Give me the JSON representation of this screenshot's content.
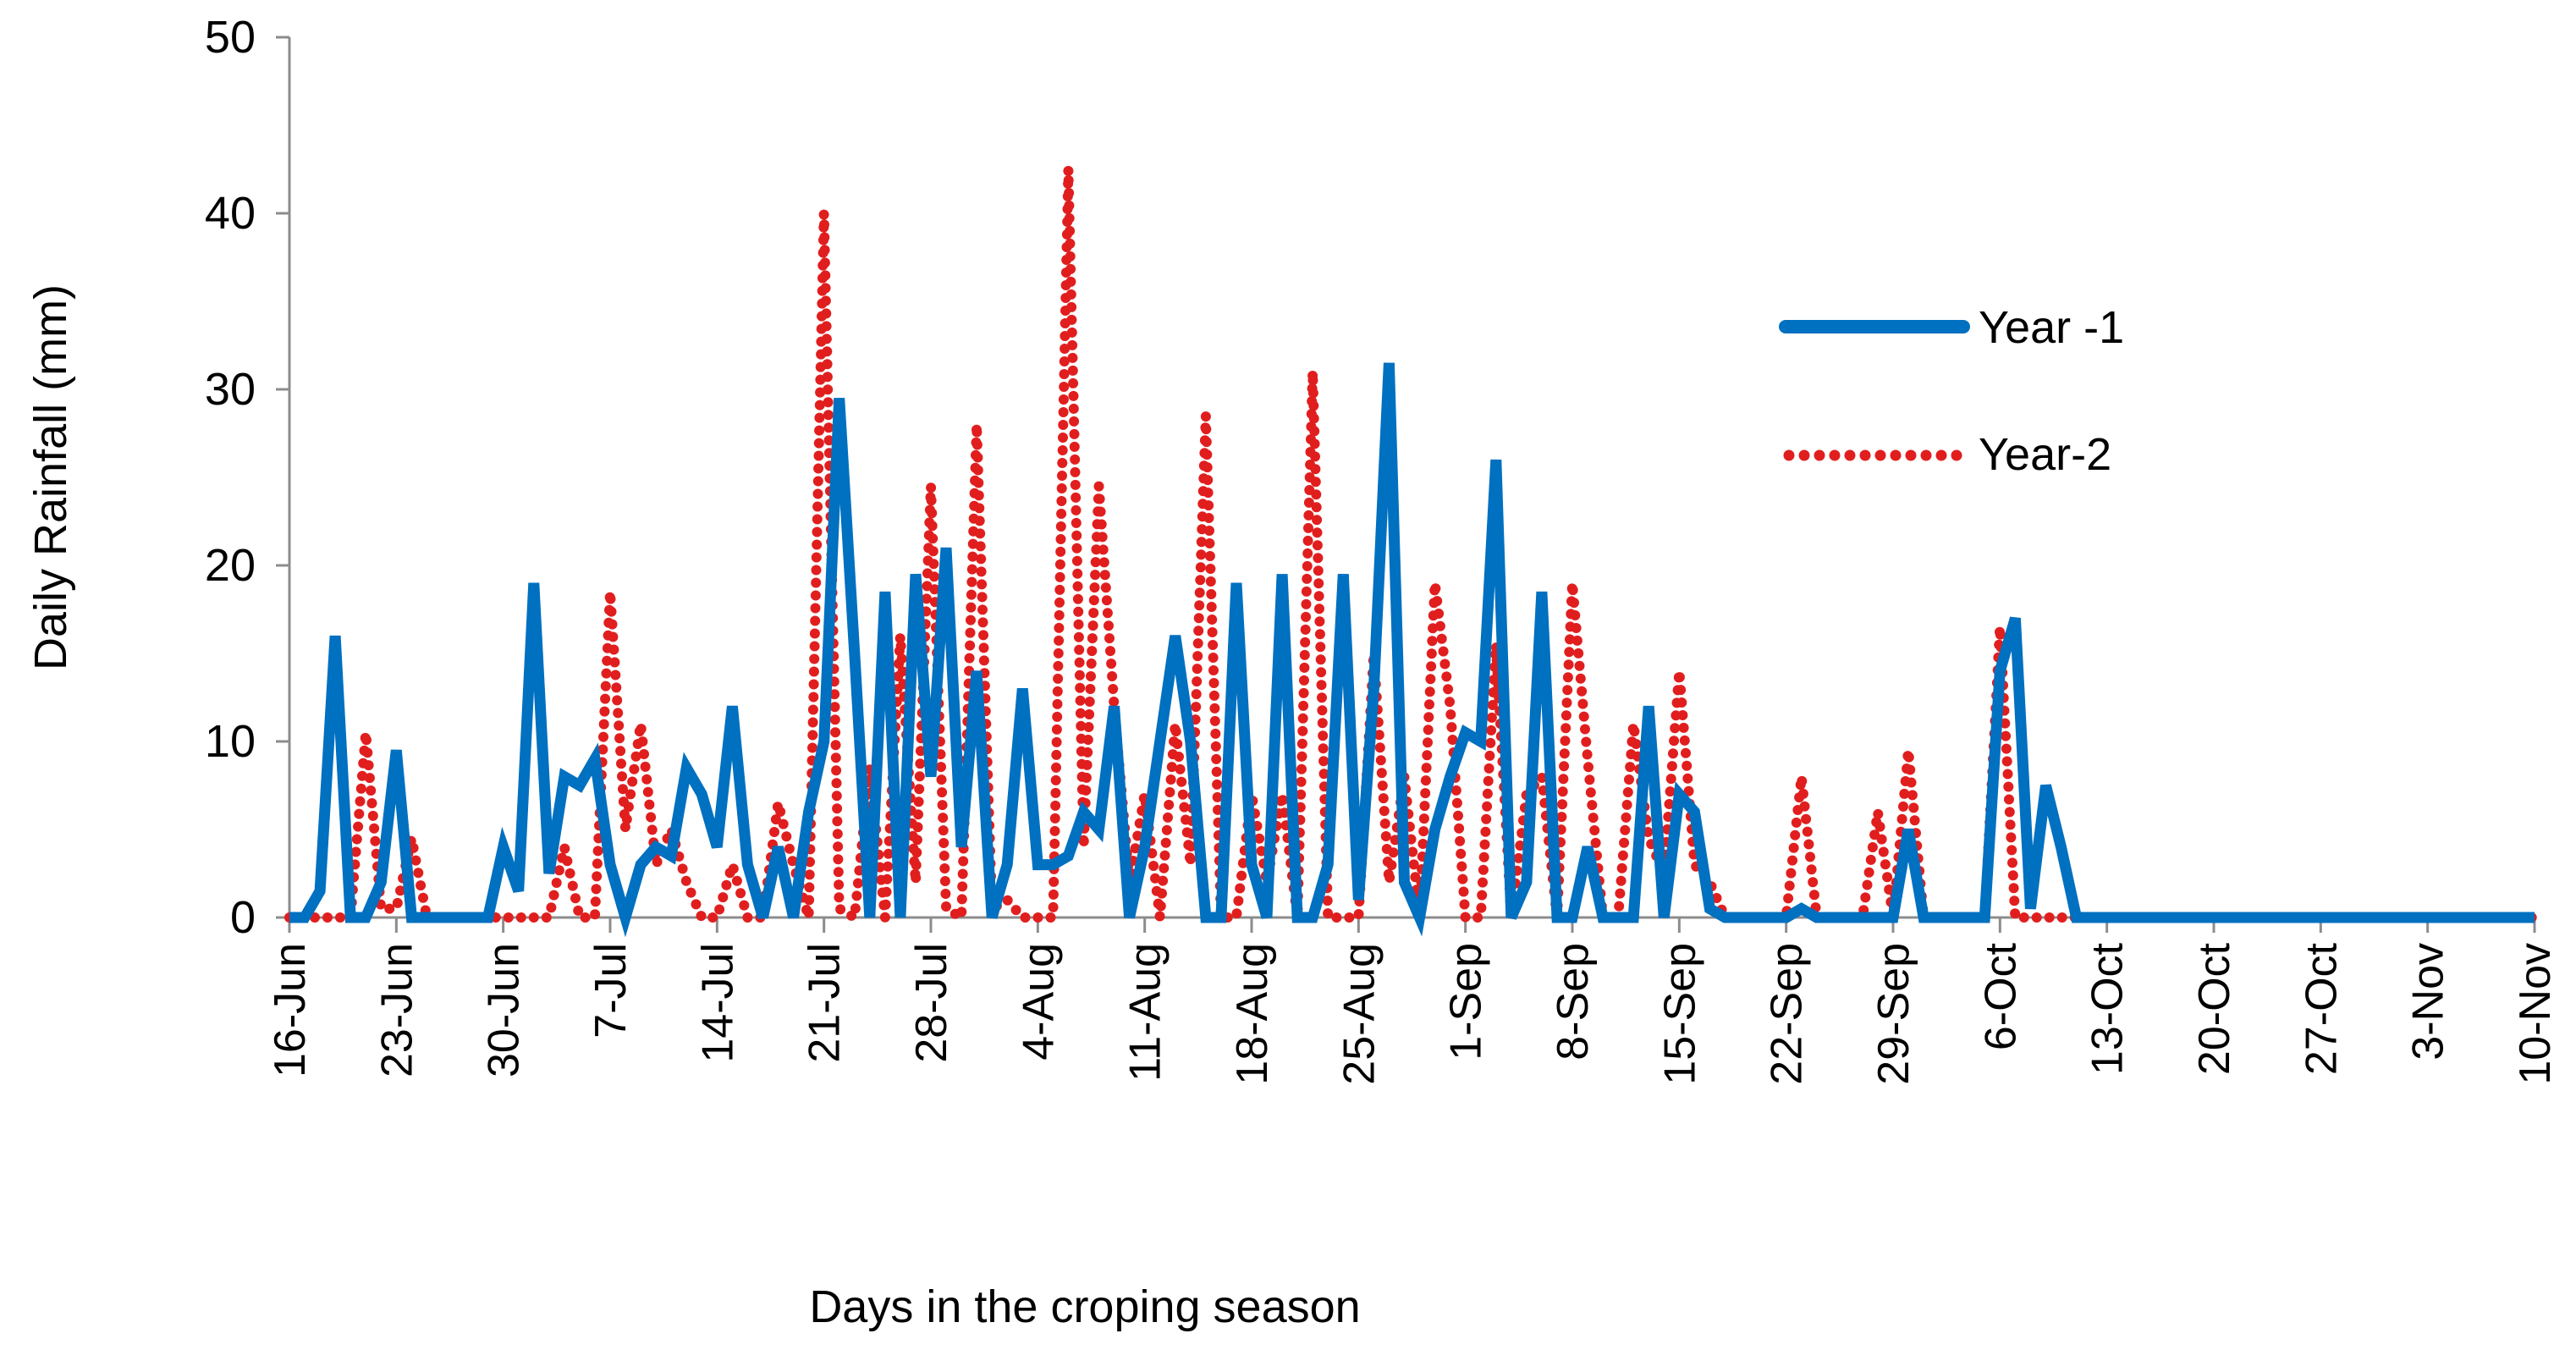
{
  "chart_data": {
    "type": "line",
    "title": "",
    "xlabel": "Days in the croping season",
    "ylabel": "Daily Rainfall (mm)",
    "ylim": [
      0,
      50
    ],
    "yticks": [
      0,
      10,
      20,
      30,
      40,
      50
    ],
    "x_start_label": "16-Jun",
    "x_day_range": [
      0,
      147
    ],
    "xticks": [
      {
        "day": 0,
        "label": "16-Jun"
      },
      {
        "day": 7,
        "label": "23-Jun"
      },
      {
        "day": 14,
        "label": "30-Jun"
      },
      {
        "day": 21,
        "label": "7-Jul"
      },
      {
        "day": 28,
        "label": "14-Jul"
      },
      {
        "day": 35,
        "label": "21-Jul"
      },
      {
        "day": 42,
        "label": "28-Jul"
      },
      {
        "day": 49,
        "label": "4-Aug"
      },
      {
        "day": 56,
        "label": "11-Aug"
      },
      {
        "day": 63,
        "label": "18-Aug"
      },
      {
        "day": 70,
        "label": "25-Aug"
      },
      {
        "day": 77,
        "label": "1-Sep"
      },
      {
        "day": 84,
        "label": "8-Sep"
      },
      {
        "day": 91,
        "label": "15-Sep"
      },
      {
        "day": 98,
        "label": "22-Sep"
      },
      {
        "day": 105,
        "label": "29-Sep"
      },
      {
        "day": 112,
        "label": "6-Oct"
      },
      {
        "day": 119,
        "label": "13-Oct"
      },
      {
        "day": 126,
        "label": "20-Oct"
      },
      {
        "day": 133,
        "label": "27-Oct"
      },
      {
        "day": 140,
        "label": "3-Nov"
      },
      {
        "day": 147,
        "label": "10-Nov"
      }
    ],
    "legend": {
      "position": "right",
      "entries": [
        "Year -1",
        "Year-2"
      ]
    },
    "series": [
      {
        "name": "Year -1",
        "color": "#0070C0",
        "style": "solid",
        "points": [
          [
            0,
            0
          ],
          [
            1,
            0
          ],
          [
            2,
            1.5
          ],
          [
            3,
            16
          ],
          [
            4,
            0
          ],
          [
            5,
            0
          ],
          [
            6,
            2
          ],
          [
            7,
            9.5
          ],
          [
            8,
            0
          ],
          [
            9,
            0
          ],
          [
            10,
            0
          ],
          [
            11,
            0
          ],
          [
            12,
            0
          ],
          [
            13,
            0
          ],
          [
            14,
            4
          ],
          [
            15,
            1.5
          ],
          [
            16,
            19
          ],
          [
            17,
            2.5
          ],
          [
            18,
            8
          ],
          [
            19,
            7.5
          ],
          [
            20,
            9
          ],
          [
            21,
            3
          ],
          [
            22,
            0
          ],
          [
            23,
            3
          ],
          [
            24,
            4
          ],
          [
            25,
            3.5
          ],
          [
            26,
            8.5
          ],
          [
            27,
            7
          ],
          [
            28,
            4
          ],
          [
            29,
            12
          ],
          [
            30,
            3
          ],
          [
            31,
            0
          ],
          [
            32,
            4
          ],
          [
            33,
            0
          ],
          [
            34,
            6
          ],
          [
            35,
            10
          ],
          [
            36,
            29.5
          ],
          [
            37,
            15
          ],
          [
            38,
            0
          ],
          [
            39,
            18.5
          ],
          [
            40,
            0
          ],
          [
            41,
            19.5
          ],
          [
            42,
            8
          ],
          [
            43,
            21
          ],
          [
            44,
            4
          ],
          [
            45,
            14
          ],
          [
            46,
            0
          ],
          [
            47,
            3
          ],
          [
            48,
            13
          ],
          [
            49,
            3
          ],
          [
            50,
            3
          ],
          [
            51,
            3.5
          ],
          [
            52,
            6
          ],
          [
            53,
            5
          ],
          [
            54,
            12
          ],
          [
            55,
            0
          ],
          [
            56,
            4
          ],
          [
            57,
            10
          ],
          [
            58,
            16
          ],
          [
            59,
            10
          ],
          [
            60,
            0
          ],
          [
            61,
            0
          ],
          [
            62,
            19
          ],
          [
            63,
            3
          ],
          [
            64,
            0
          ],
          [
            65,
            19.5
          ],
          [
            66,
            0
          ],
          [
            67,
            0
          ],
          [
            68,
            3
          ],
          [
            69,
            19.5
          ],
          [
            70,
            1
          ],
          [
            71,
            13
          ],
          [
            72,
            31.5
          ],
          [
            73,
            2
          ],
          [
            74,
            0
          ],
          [
            75,
            5
          ],
          [
            76,
            8
          ],
          [
            77,
            10.5
          ],
          [
            78,
            10
          ],
          [
            79,
            26
          ],
          [
            80,
            0
          ],
          [
            81,
            2
          ],
          [
            82,
            18.5
          ],
          [
            83,
            0
          ],
          [
            84,
            0
          ],
          [
            85,
            4
          ],
          [
            86,
            0
          ],
          [
            87,
            0
          ],
          [
            88,
            0
          ],
          [
            89,
            12
          ],
          [
            90,
            0
          ],
          [
            91,
            7
          ],
          [
            92,
            6
          ],
          [
            93,
            0.5
          ],
          [
            94,
            0
          ],
          [
            95,
            0
          ],
          [
            96,
            0
          ],
          [
            97,
            0
          ],
          [
            98,
            0
          ],
          [
            99,
            0.5
          ],
          [
            100,
            0
          ],
          [
            101,
            0
          ],
          [
            102,
            0
          ],
          [
            103,
            0
          ],
          [
            104,
            0
          ],
          [
            105,
            0
          ],
          [
            106,
            5
          ],
          [
            107,
            0
          ],
          [
            108,
            0
          ],
          [
            109,
            0
          ],
          [
            110,
            0
          ],
          [
            111,
            0
          ],
          [
            112,
            14
          ],
          [
            113,
            17
          ],
          [
            114,
            0.5
          ],
          [
            115,
            7.5
          ],
          [
            116,
            4
          ],
          [
            117,
            0
          ],
          [
            118,
            0
          ],
          [
            119,
            0
          ],
          [
            120,
            0
          ],
          [
            121,
            0
          ],
          [
            122,
            0
          ],
          [
            123,
            0
          ],
          [
            124,
            0
          ],
          [
            125,
            0
          ],
          [
            126,
            0
          ],
          [
            127,
            0
          ],
          [
            128,
            0
          ],
          [
            129,
            0
          ],
          [
            130,
            0
          ],
          [
            131,
            0
          ],
          [
            132,
            0
          ],
          [
            133,
            0
          ],
          [
            134,
            0
          ],
          [
            135,
            0
          ],
          [
            136,
            0
          ],
          [
            137,
            0
          ],
          [
            138,
            0
          ],
          [
            139,
            0
          ],
          [
            140,
            0
          ],
          [
            141,
            0
          ],
          [
            142,
            0
          ],
          [
            143,
            0
          ],
          [
            144,
            0
          ],
          [
            145,
            0
          ],
          [
            146,
            0
          ],
          [
            147,
            0
          ]
        ]
      },
      {
        "name": "Year-2",
        "color": "#E11E1E",
        "style": "dotted",
        "points": [
          [
            0,
            0
          ],
          [
            1,
            0
          ],
          [
            2,
            0
          ],
          [
            3,
            0
          ],
          [
            4,
            0
          ],
          [
            5,
            10.5
          ],
          [
            6,
            0.5
          ],
          [
            7,
            0.5
          ],
          [
            8,
            4.5
          ],
          [
            9,
            0
          ],
          [
            10,
            0
          ],
          [
            11,
            0
          ],
          [
            12,
            0
          ],
          [
            13,
            0
          ],
          [
            14,
            0
          ],
          [
            15,
            0
          ],
          [
            16,
            0
          ],
          [
            17,
            0
          ],
          [
            18,
            4
          ],
          [
            19,
            0
          ],
          [
            20,
            0
          ],
          [
            21,
            18.5
          ],
          [
            22,
            5
          ],
          [
            23,
            11
          ],
          [
            24,
            3
          ],
          [
            25,
            5
          ],
          [
            26,
            2
          ],
          [
            27,
            0
          ],
          [
            28,
            0
          ],
          [
            29,
            3
          ],
          [
            30,
            0
          ],
          [
            31,
            0
          ],
          [
            32,
            6.5
          ],
          [
            33,
            3
          ],
          [
            34,
            0
          ],
          [
            35,
            40
          ],
          [
            36,
            0.5
          ],
          [
            37,
            0
          ],
          [
            38,
            8.5
          ],
          [
            39,
            0
          ],
          [
            40,
            16
          ],
          [
            41,
            2
          ],
          [
            42,
            24.5
          ],
          [
            43,
            0.5
          ],
          [
            44,
            0
          ],
          [
            45,
            28
          ],
          [
            46,
            0.5
          ],
          [
            47,
            1
          ],
          [
            48,
            0
          ],
          [
            49,
            0
          ],
          [
            50,
            0
          ],
          [
            51,
            42.5
          ],
          [
            52,
            4
          ],
          [
            53,
            24.5
          ],
          [
            54,
            12
          ],
          [
            55,
            2
          ],
          [
            56,
            7
          ],
          [
            57,
            0
          ],
          [
            58,
            11
          ],
          [
            59,
            3
          ],
          [
            60,
            28.5
          ],
          [
            61,
            0
          ],
          [
            62,
            0
          ],
          [
            63,
            7
          ],
          [
            64,
            2
          ],
          [
            65,
            7
          ],
          [
            66,
            0
          ],
          [
            67,
            31
          ],
          [
            68,
            0
          ],
          [
            69,
            0
          ],
          [
            70,
            0
          ],
          [
            71,
            15
          ],
          [
            72,
            2
          ],
          [
            73,
            8
          ],
          [
            74,
            0
          ],
          [
            75,
            19
          ],
          [
            76,
            12
          ],
          [
            77,
            0
          ],
          [
            78,
            0
          ],
          [
            79,
            15.5
          ],
          [
            80,
            0
          ],
          [
            81,
            7
          ],
          [
            82,
            8
          ],
          [
            83,
            0
          ],
          [
            84,
            19
          ],
          [
            85,
            9
          ],
          [
            86,
            0
          ],
          [
            87,
            0
          ],
          [
            88,
            11
          ],
          [
            89,
            4.5
          ],
          [
            90,
            2.5
          ],
          [
            91,
            14
          ],
          [
            92,
            3
          ],
          [
            93,
            2
          ],
          [
            94,
            0
          ],
          [
            95,
            0
          ],
          [
            96,
            0
          ],
          [
            97,
            0
          ],
          [
            98,
            0
          ],
          [
            99,
            8
          ],
          [
            100,
            0
          ],
          [
            101,
            0
          ],
          [
            102,
            0
          ],
          [
            103,
            0
          ],
          [
            104,
            6
          ],
          [
            105,
            0
          ],
          [
            106,
            9.5
          ],
          [
            107,
            0
          ],
          [
            108,
            0
          ],
          [
            109,
            0
          ],
          [
            110,
            0
          ],
          [
            111,
            0
          ],
          [
            112,
            16.5
          ],
          [
            113,
            0
          ],
          [
            114,
            0
          ],
          [
            115,
            0
          ],
          [
            116,
            0
          ],
          [
            117,
            0
          ],
          [
            118,
            0
          ],
          [
            119,
            0
          ],
          [
            120,
            0
          ],
          [
            121,
            0
          ],
          [
            122,
            0
          ],
          [
            123,
            0
          ],
          [
            124,
            0
          ],
          [
            125,
            0
          ],
          [
            126,
            0
          ],
          [
            127,
            0
          ],
          [
            128,
            0
          ],
          [
            129,
            0
          ],
          [
            130,
            0
          ],
          [
            131,
            0
          ],
          [
            132,
            0
          ],
          [
            133,
            0
          ],
          [
            134,
            0
          ],
          [
            135,
            0
          ],
          [
            136,
            0
          ],
          [
            137,
            0
          ],
          [
            138,
            0
          ],
          [
            139,
            0
          ],
          [
            140,
            0
          ],
          [
            141,
            0
          ],
          [
            142,
            0
          ],
          [
            143,
            0
          ],
          [
            144,
            0
          ],
          [
            145,
            0
          ],
          [
            146,
            0
          ],
          [
            147,
            0
          ]
        ]
      }
    ]
  }
}
